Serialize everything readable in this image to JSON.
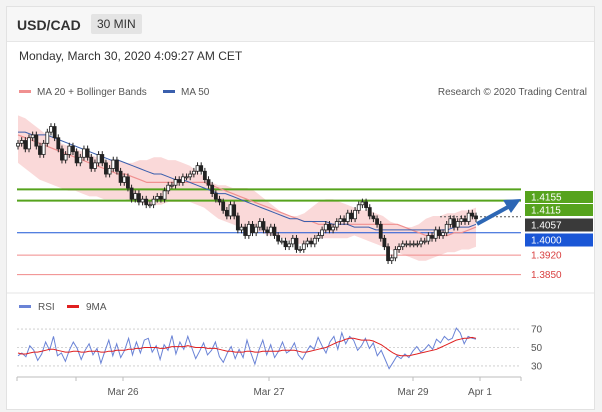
{
  "header": {
    "pair": "USD/CAD",
    "timeframe": "30 MIN"
  },
  "datetime": "Monday, March 30, 2020 4:09:27 AM CET",
  "colors": {
    "ma20": "#f09090",
    "ma50": "#3a5fad",
    "band": "#f8cccc",
    "resistance": "#56a31d",
    "support": "#1a56d6",
    "red_level": "#f08a8a",
    "rsi": "#6a83d6",
    "rsi_ma": "#e02020",
    "arrow": "#2d67b5"
  },
  "legend": {
    "ma20": "MA 20 + Bollinger Bands",
    "ma50": "MA 50",
    "credit": "Research © 2020 Trading Central"
  },
  "rsi_legend": {
    "rsi": "RSI",
    "ma": "9MA"
  },
  "chart_data": {
    "type": "candlestick",
    "instrument": "USD/CAD",
    "timeframe": "30 MIN",
    "x_tick_labels": [
      "Mar 26",
      "Mar 27",
      "Mar 29",
      "Apr 1"
    ],
    "ylim": [
      1.3795,
      1.4475
    ],
    "levels": [
      {
        "label": "1.4155",
        "value": 1.4155,
        "kind": "resistance"
      },
      {
        "label": "1.4115",
        "value": 1.4115,
        "kind": "resistance"
      },
      {
        "label": "1.4057",
        "value": 1.4057,
        "kind": "last"
      },
      {
        "label": "1.4000",
        "value": 1.4,
        "kind": "support"
      },
      {
        "label": "1.3920",
        "value": 1.392,
        "kind": "support"
      },
      {
        "label": "1.3850",
        "value": 1.385,
        "kind": "support"
      }
    ],
    "close": [
      1.432,
      1.433,
      1.43,
      1.434,
      1.435,
      1.431,
      1.428,
      1.432,
      1.436,
      1.438,
      1.434,
      1.43,
      1.426,
      1.428,
      1.431,
      1.429,
      1.425,
      1.427,
      1.43,
      1.427,
      1.423,
      1.425,
      1.428,
      1.425,
      1.421,
      1.423,
      1.426,
      1.422,
      1.418,
      1.42,
      1.416,
      1.412,
      1.414,
      1.411,
      1.412,
      1.41,
      1.41,
      1.412,
      1.413,
      1.412,
      1.415,
      1.417,
      1.417,
      1.419,
      1.418,
      1.42,
      1.42,
      1.421,
      1.422,
      1.424,
      1.422,
      1.419,
      1.417,
      1.414,
      1.412,
      1.411,
      1.408,
      1.406,
      1.41,
      1.406,
      1.401,
      1.402,
      1.399,
      1.403,
      1.4,
      1.402,
      1.404,
      1.401,
      1.4,
      1.402,
      1.399,
      1.397,
      1.397,
      1.395,
      1.396,
      1.398,
      1.394,
      1.394,
      1.396,
      1.397,
      1.396,
      1.398,
      1.399,
      1.401,
      1.403,
      1.401,
      1.402,
      1.404,
      1.405,
      1.404,
      1.407,
      1.405,
      1.408,
      1.41,
      1.411,
      1.409,
      1.406,
      1.405,
      1.403,
      1.398,
      1.395,
      1.39,
      1.391,
      1.394,
      1.395,
      1.396,
      1.396,
      1.396,
      1.396,
      1.396,
      1.397,
      1.397,
      1.399,
      1.398,
      1.401,
      1.399,
      1.4,
      1.403,
      1.405,
      1.402,
      1.404,
      1.405,
      1.404,
      1.407,
      1.406,
      1.405
    ],
    "ma20": [
      1.435,
      1.434,
      1.433,
      1.432,
      1.431,
      1.43,
      1.429,
      1.428,
      1.427,
      1.426,
      1.425,
      1.424,
      1.423,
      1.422,
      1.421,
      1.421,
      1.42,
      1.419,
      1.418,
      1.418,
      1.418,
      1.418,
      1.418,
      1.418,
      1.418,
      1.418,
      1.418,
      1.417,
      1.416,
      1.415,
      1.414,
      1.413,
      1.412,
      1.411,
      1.41,
      1.409,
      1.408,
      1.407,
      1.406,
      1.405,
      1.404,
      1.404,
      1.403,
      1.403,
      1.403,
      1.403,
      1.403,
      1.403,
      1.403,
      1.403,
      1.403,
      1.403,
      1.403,
      1.403,
      1.402,
      1.401,
      1.4,
      1.399,
      1.399,
      1.399,
      1.399,
      1.4,
      1.4,
      1.401,
      1.402
    ],
    "ma50": [
      1.436,
      1.436,
      1.435,
      1.435,
      1.435,
      1.434,
      1.433,
      1.432,
      1.431,
      1.43,
      1.429,
      1.428,
      1.427,
      1.426,
      1.426,
      1.425,
      1.424,
      1.423,
      1.422,
      1.421,
      1.421,
      1.42,
      1.419,
      1.419,
      1.418,
      1.417,
      1.416,
      1.415,
      1.414,
      1.414,
      1.413,
      1.412,
      1.411,
      1.41,
      1.409,
      1.408,
      1.407,
      1.406,
      1.405,
      1.405,
      1.404,
      1.404,
      1.404,
      1.404,
      1.403,
      1.403,
      1.403,
      1.402,
      1.402,
      1.402,
      1.401,
      1.401,
      1.401,
      1.401,
      1.401,
      1.401,
      1.401,
      1.401,
      1.401,
      1.401,
      1.401,
      1.402,
      1.402,
      1.402,
      1.403
    ],
    "band_upper": [
      1.442,
      1.441,
      1.439,
      1.437,
      1.435,
      1.434,
      1.432,
      1.431,
      1.43,
      1.429,
      1.428,
      1.427,
      1.426,
      1.426,
      1.426,
      1.425,
      1.425,
      1.426,
      1.426,
      1.427,
      1.427,
      1.426,
      1.426,
      1.425,
      1.424,
      1.422,
      1.42,
      1.418,
      1.417,
      1.417,
      1.416,
      1.416,
      1.416,
      1.415,
      1.413,
      1.411,
      1.409,
      1.407,
      1.406,
      1.406,
      1.407,
      1.409,
      1.411,
      1.412,
      1.412,
      1.411,
      1.41,
      1.409,
      1.408,
      1.408,
      1.407,
      1.406,
      1.404,
      1.403,
      1.402,
      1.402,
      1.403,
      1.405,
      1.406,
      1.406,
      1.407,
      1.407,
      1.408,
      1.408,
      1.409
    ],
    "band_lower": [
      1.425,
      1.423,
      1.421,
      1.419,
      1.418,
      1.417,
      1.416,
      1.415,
      1.415,
      1.414,
      1.413,
      1.413,
      1.412,
      1.412,
      1.412,
      1.412,
      1.411,
      1.411,
      1.41,
      1.41,
      1.41,
      1.411,
      1.411,
      1.411,
      1.411,
      1.41,
      1.409,
      1.407,
      1.405,
      1.404,
      1.403,
      1.402,
      1.401,
      1.4,
      1.4,
      1.399,
      1.399,
      1.398,
      1.397,
      1.396,
      1.396,
      1.397,
      1.398,
      1.398,
      1.398,
      1.398,
      1.398,
      1.399,
      1.398,
      1.397,
      1.396,
      1.395,
      1.394,
      1.393,
      1.392,
      1.391,
      1.39,
      1.39,
      1.391,
      1.392,
      1.393,
      1.393,
      1.394,
      1.394,
      1.395
    ],
    "rsi": {
      "labels": [
        "70",
        "50",
        "30"
      ],
      "levels": [
        70,
        50,
        30
      ],
      "ylim": [
        18,
        82
      ],
      "values": [
        41,
        44,
        40,
        52,
        47,
        36,
        43,
        56,
        47,
        62,
        41,
        44,
        35,
        47,
        56,
        49,
        37,
        47,
        54,
        42,
        49,
        33,
        46,
        58,
        41,
        54,
        39,
        47,
        60,
        42,
        56,
        44,
        58,
        60,
        45,
        52,
        37,
        53,
        47,
        63,
        43,
        56,
        48,
        62,
        50,
        38,
        46,
        55,
        42,
        47,
        56,
        40,
        34,
        44,
        51,
        38,
        48,
        39,
        58,
        44,
        32,
        47,
        58,
        42,
        53,
        39,
        46,
        56,
        44,
        47,
        55,
        42,
        37,
        45,
        52,
        48,
        61,
        52,
        44,
        56,
        62,
        48,
        66,
        54,
        62,
        58,
        47,
        52,
        60,
        49,
        55,
        41,
        47,
        37,
        27,
        34,
        41,
        38,
        43,
        39,
        46,
        51,
        45,
        48,
        53,
        48,
        59,
        55,
        62,
        58,
        60,
        71,
        66,
        54,
        62,
        60,
        59
      ],
      "ma": [
        44,
        43,
        43,
        44,
        45,
        45,
        46,
        47,
        48,
        48,
        47,
        46,
        45,
        45,
        46,
        46,
        45,
        45,
        46,
        46,
        46,
        45,
        45,
        46,
        46,
        47,
        47,
        47,
        48,
        48,
        49,
        49,
        50,
        50,
        50,
        50,
        49,
        49,
        50,
        51,
        51,
        51,
        51,
        52,
        51,
        50,
        50,
        50,
        49,
        49,
        49,
        48,
        47,
        46,
        46,
        45,
        45,
        45,
        46,
        46,
        45,
        45,
        46,
        46,
        46,
        46,
        46,
        47,
        47,
        47,
        47,
        46,
        45,
        45,
        46,
        47,
        48,
        49,
        50,
        52,
        54,
        56,
        57,
        59,
        60,
        60,
        59,
        58,
        58,
        58,
        57,
        55,
        53,
        50,
        47,
        44,
        42,
        41,
        41,
        41,
        42,
        43,
        44,
        45,
        46,
        47,
        48,
        50,
        52,
        54,
        56,
        58,
        59,
        60,
        60,
        61,
        60
      ]
    }
  }
}
